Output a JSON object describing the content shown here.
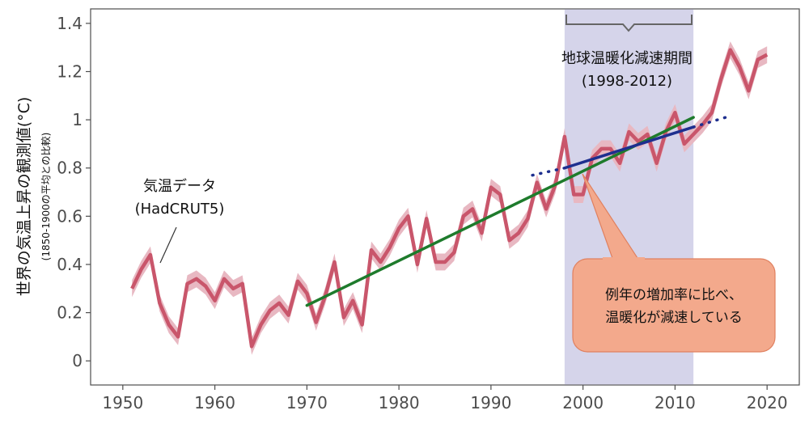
{
  "chart_data": {
    "type": "line",
    "ylabel": "世界の気温上昇の観測値(°C)",
    "ylabel_sub": "(1850-1900の平均との比較)",
    "xlim": [
      1946.5,
      2023.5
    ],
    "ylim": [
      -0.1,
      1.46
    ],
    "x_ticks": [
      1950,
      1960,
      1970,
      1980,
      1990,
      2000,
      2010,
      2020
    ],
    "y_ticks": [
      0,
      0.2,
      0.4,
      0.6,
      0.8,
      1,
      1.2,
      1.4
    ],
    "y_tick_labels": [
      "0",
      "0.2",
      "0.4",
      "0.6",
      "0.8",
      "1",
      "1.2",
      "1.4"
    ],
    "series": [
      {
        "name": "HadCRUT5",
        "color": "#c9566b",
        "band_color": "#e8b8c2",
        "x": [
          1951,
          1952,
          1953,
          1954,
          1955,
          1956,
          1957,
          1958,
          1959,
          1960,
          1961,
          1962,
          1963,
          1964,
          1965,
          1966,
          1967,
          1968,
          1969,
          1970,
          1971,
          1972,
          1973,
          1974,
          1975,
          1976,
          1977,
          1978,
          1979,
          1980,
          1981,
          1982,
          1983,
          1984,
          1985,
          1986,
          1987,
          1988,
          1989,
          1990,
          1991,
          1992,
          1993,
          1994,
          1995,
          1996,
          1997,
          1998,
          1999,
          2000,
          2001,
          2002,
          2003,
          2004,
          2005,
          2006,
          2007,
          2008,
          2009,
          2010,
          2011,
          2012,
          2013,
          2014,
          2015,
          2016,
          2017,
          2018,
          2019,
          2020
        ],
        "values": [
          0.3,
          0.38,
          0.44,
          0.24,
          0.15,
          0.1,
          0.32,
          0.34,
          0.31,
          0.25,
          0.34,
          0.3,
          0.32,
          0.06,
          0.15,
          0.21,
          0.24,
          0.19,
          0.33,
          0.28,
          0.16,
          0.27,
          0.41,
          0.18,
          0.25,
          0.15,
          0.46,
          0.41,
          0.47,
          0.55,
          0.6,
          0.4,
          0.59,
          0.41,
          0.41,
          0.45,
          0.6,
          0.63,
          0.53,
          0.72,
          0.69,
          0.5,
          0.53,
          0.59,
          0.74,
          0.63,
          0.73,
          0.93,
          0.69,
          0.69,
          0.84,
          0.88,
          0.88,
          0.82,
          0.95,
          0.91,
          0.94,
          0.82,
          0.95,
          1.03,
          0.9,
          0.94,
          0.98,
          1.03,
          1.17,
          1.29,
          1.22,
          1.12,
          1.25,
          1.27
        ],
        "band": 0.035
      }
    ],
    "trends": [
      {
        "name": "1970-2012 trend",
        "color": "#1e7b2c",
        "style": "solid",
        "x": [
          1970,
          2012
        ],
        "y": [
          0.23,
          1.01
        ]
      },
      {
        "name": "1998-2012 trend",
        "color": "#1e2f8f",
        "style": "solid",
        "x": [
          1998,
          2012
        ],
        "y": [
          0.8,
          0.97
        ]
      },
      {
        "name": "extension-left",
        "color": "#1e2f8f",
        "style": "dotted",
        "x": [
          1994.5,
          1998
        ],
        "y": [
          0.77,
          0.8
        ]
      },
      {
        "name": "extension-right",
        "color": "#1e2f8f",
        "style": "dotted",
        "x": [
          2012,
          2015.5
        ],
        "y": [
          0.97,
          1.01
        ]
      }
    ],
    "shaded_region": {
      "x": [
        1998,
        2012
      ],
      "color": "#d5d4ea"
    },
    "annotations": {
      "hiatus_title": "地球温暖化減速期間",
      "hiatus_years": "(1998-2012)",
      "data_label_1": "気温データ",
      "data_label_2": "(HadCRUT5)",
      "callout_1": "例年の増加率に比べ、",
      "callout_2": "温暖化が減速している",
      "callout_color": "#f3a98c"
    }
  }
}
